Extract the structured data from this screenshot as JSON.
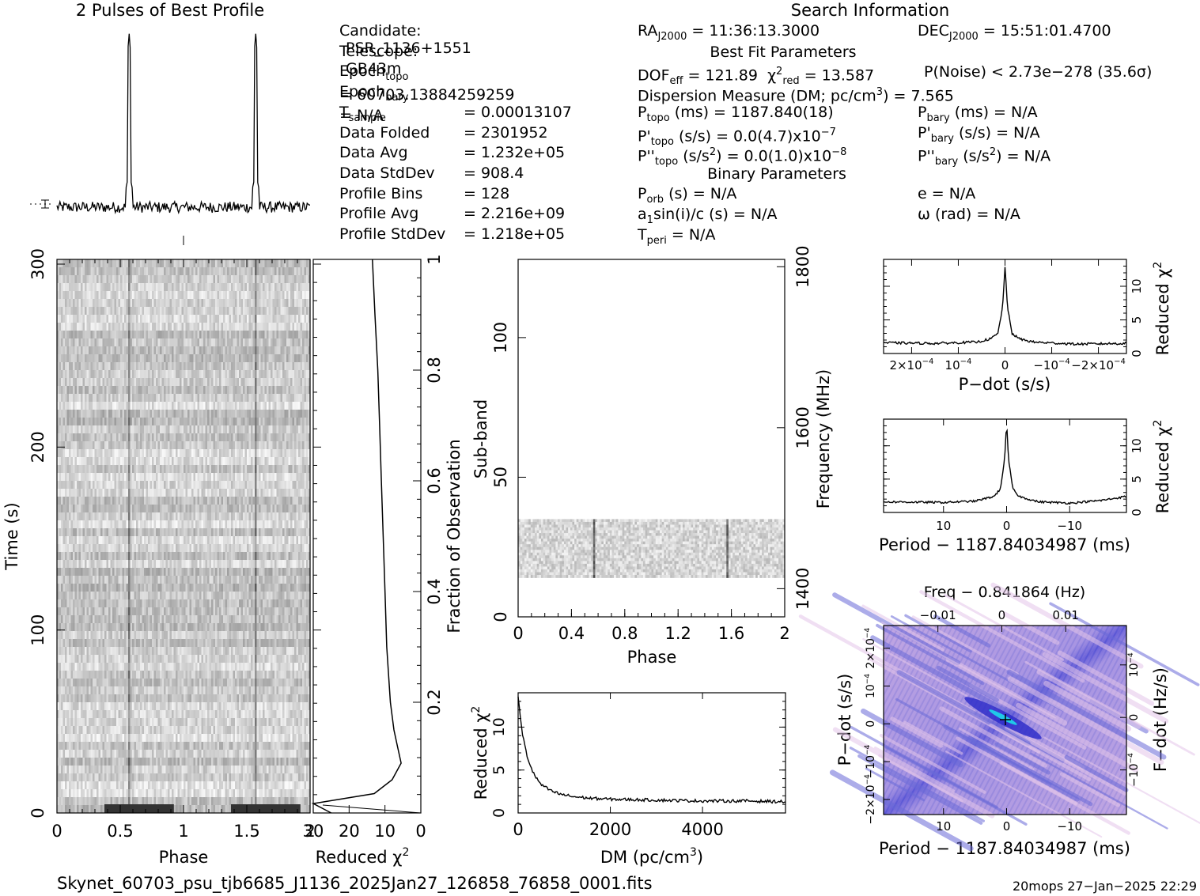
{
  "titles": {
    "profile": "2 Pulses of Best Profile",
    "search": "Search Information",
    "best_fit": "Best Fit Parameters",
    "binary": "Binary Parameters"
  },
  "info_left": [
    {
      "k": "Candidate:",
      "v": "PSR_1136+1551"
    },
    {
      "k": "Telescope:",
      "v": "GB43m"
    },
    {
      "k": "Epoch",
      "sub": "topo",
      "v": "= 60703.13884259259"
    },
    {
      "k": "Epoch",
      "sub": "bary",
      "v": "= N/A"
    },
    {
      "k": "T",
      "sub": "sample",
      "v": "0.00013107"
    },
    {
      "k": "Data Folded",
      "v": "2301952"
    },
    {
      "k": "Data Avg",
      "v": "1.232e+05"
    },
    {
      "k": "Data StdDev",
      "v": "908.4"
    },
    {
      "k": "Profile Bins",
      "v": "128"
    },
    {
      "k": "Profile Avg",
      "v": "2.216e+09"
    },
    {
      "k": "Profile StdDev",
      "v": "1.218e+05"
    }
  ],
  "info_mid": {
    "ra": "= 11:36:13.3000",
    "dof": "= 121.89",
    "chi2": "= 13.587",
    "dm": "Dispersion Measure (DM; pc/cm",
    "dm_val": ") = 7.565",
    "ptopo": "(ms) =  1187.840(18)",
    "pdtopo": "(s/s) = 0.0(4.7)x10",
    "pdtopo_exp": "−7",
    "pddtopo": "(s/s",
    "pddtopo_val": ") = 0.0(1.0)x10",
    "pddtopo_exp": "−8",
    "porb": "(s) = N/A",
    "a1": "a",
    "a1b": "sin(i)/c (s) = N/A",
    "tperi": "= N/A"
  },
  "info_right": {
    "dec": "= 15:51:01.4700",
    "pnoise": "P(Noise) < 2.73e−278  (35.6σ)",
    "pbary": "(ms) = N/A",
    "pdbary": "(s/s) = N/A",
    "pddbary": "(s/s",
    "pddbary_val": ") = N/A",
    "ecc": "e = N/A",
    "omega": "ω (rad) = N/A"
  },
  "footer": {
    "filename": "Skynet_60703_psu_tjb6685_J1136_2025Jan27_126858_76858_0001.fits",
    "stamp": "20mops 27−Jan−2025 22:29"
  },
  "chart_data": [
    {
      "type": "line",
      "panel": "profile",
      "title": "2 Pulses of Best Profile",
      "x": [
        0,
        2
      ],
      "peaks_phase": [
        0.57,
        1.57
      ],
      "baseline": 1.0,
      "peak_height": 10.0
    },
    {
      "type": "heatmap",
      "panel": "time-phase",
      "xlabel": "Phase",
      "ylabel": "Time (s)",
      "xlim": [
        0,
        2
      ],
      "ylim": [
        0,
        300
      ],
      "xticks": [
        "0",
        "0.5",
        "1",
        "1.5",
        "2"
      ],
      "yticks": [
        "0",
        "100",
        "200",
        "300"
      ]
    },
    {
      "type": "line",
      "panel": "reduced-chi2-vs-time",
      "xlabel": "Reduced χ",
      "ylabel": "Fraction of Observation",
      "xlim": [
        30,
        0
      ],
      "ylim": [
        0,
        1
      ],
      "xticks": [
        "30",
        "20",
        "10",
        "0"
      ],
      "yticks": [
        "0.2",
        "0.4",
        "0.6",
        "0.8",
        "1"
      ],
      "y": [
        0,
        0.017,
        0.035,
        0.06,
        0.09,
        0.12,
        0.15,
        0.2,
        0.3,
        0.4,
        0.5,
        0.6,
        0.7,
        0.8,
        0.9,
        1.0
      ],
      "x_vals": [
        25,
        30,
        13,
        8,
        5.5,
        6.5,
        7.5,
        8.5,
        9.5,
        10,
        10.5,
        11,
        11.5,
        12,
        12.8,
        13.5
      ]
    },
    {
      "type": "heatmap",
      "panel": "subband-phase",
      "xlabel": "Phase",
      "ylabel": "Sub-band",
      "y2label": "Frequency (MHz)",
      "xlim": [
        0,
        2
      ],
      "ylim": [
        0,
        128
      ],
      "xticks": [
        "0",
        "0.4",
        "0.8",
        "1.2",
        "1.6",
        "2"
      ],
      "yticks": [
        "0",
        "50",
        "100"
      ],
      "y2ticks": [
        "1400",
        "1600",
        "1800"
      ],
      "data_band": [
        14,
        35
      ]
    },
    {
      "type": "line",
      "panel": "dm-curve",
      "xlabel": "DM (pc/cm",
      "ylabel": "Reduced χ",
      "xlim": [
        0,
        5800
      ],
      "ylim": [
        0,
        14
      ],
      "xticks": [
        "0",
        "2000",
        "4000"
      ],
      "yticks": [
        "0",
        "5",
        "10"
      ],
      "x": [
        0,
        50,
        100,
        200,
        300,
        400,
        500,
        700,
        900,
        1200,
        1600,
        2000,
        3000,
        4000,
        5000,
        5800
      ],
      "y": [
        13.5,
        11,
        9,
        6.5,
        5,
        4,
        3.3,
        2.6,
        2.2,
        1.9,
        1.7,
        1.6,
        1.5,
        1.4,
        1.4,
        1.3
      ]
    },
    {
      "type": "line",
      "panel": "pdot-curve",
      "xlabel": "P−dot (s/s)",
      "ylabel": "Reduced χ",
      "xlim": [
        2.6,
        -2.6
      ],
      "ylim": [
        0,
        14
      ],
      "xticks": [
        "2×10",
        "10",
        "0",
        "−10",
        "−2×10"
      ],
      "xtick_exp": "−4",
      "yticks": [
        "0",
        "5",
        "10"
      ],
      "x": [
        2.6,
        1.5,
        0.6,
        0.3,
        0.15,
        0.05,
        0,
        -0.05,
        -0.15,
        -0.3,
        -0.6,
        -1.5,
        -2.6
      ],
      "y": [
        1.6,
        1.5,
        1.7,
        2.2,
        3,
        7,
        13,
        7,
        3,
        2.2,
        1.7,
        1.4,
        1.5
      ]
    },
    {
      "type": "line",
      "panel": "period-curve",
      "xlabel": "Period − 1187.84034987 (ms)",
      "ylabel": "Reduced χ",
      "xlim": [
        19.5,
        -19
      ],
      "ylim": [
        0,
        14
      ],
      "xticks": [
        "10",
        "0",
        "−10"
      ],
      "yticks": [
        "0",
        "5",
        "10"
      ],
      "x": [
        19.5,
        10,
        5,
        2,
        1,
        0.3,
        0,
        -0.3,
        -1,
        -2,
        -5,
        -10,
        -15,
        -19
      ],
      "y": [
        1.6,
        1.5,
        1.7,
        2.4,
        3.5,
        8,
        13.5,
        8,
        3.5,
        2.4,
        1.6,
        1.4,
        1.8,
        2.4
      ]
    },
    {
      "type": "heatmap",
      "panel": "p-pdot-plane",
      "xlabel": "Period − 1187.84034987 (ms)",
      "ylabel": "P−dot (s/s)",
      "x2label": "Freq − 0.841864 (Hz)",
      "y2label": "F−dot (Hz/s)",
      "xticks": [
        "10",
        "0",
        "−10"
      ],
      "x2ticks": [
        "−0.01",
        "0",
        "0.01"
      ],
      "yticks": [
        "2×10",
        "10",
        "0",
        "−10",
        "−2×10"
      ],
      "ytick_exp": "−4",
      "y2ticks": [
        "10",
        "0",
        "−10"
      ],
      "y2tick_exp": "−4"
    }
  ]
}
